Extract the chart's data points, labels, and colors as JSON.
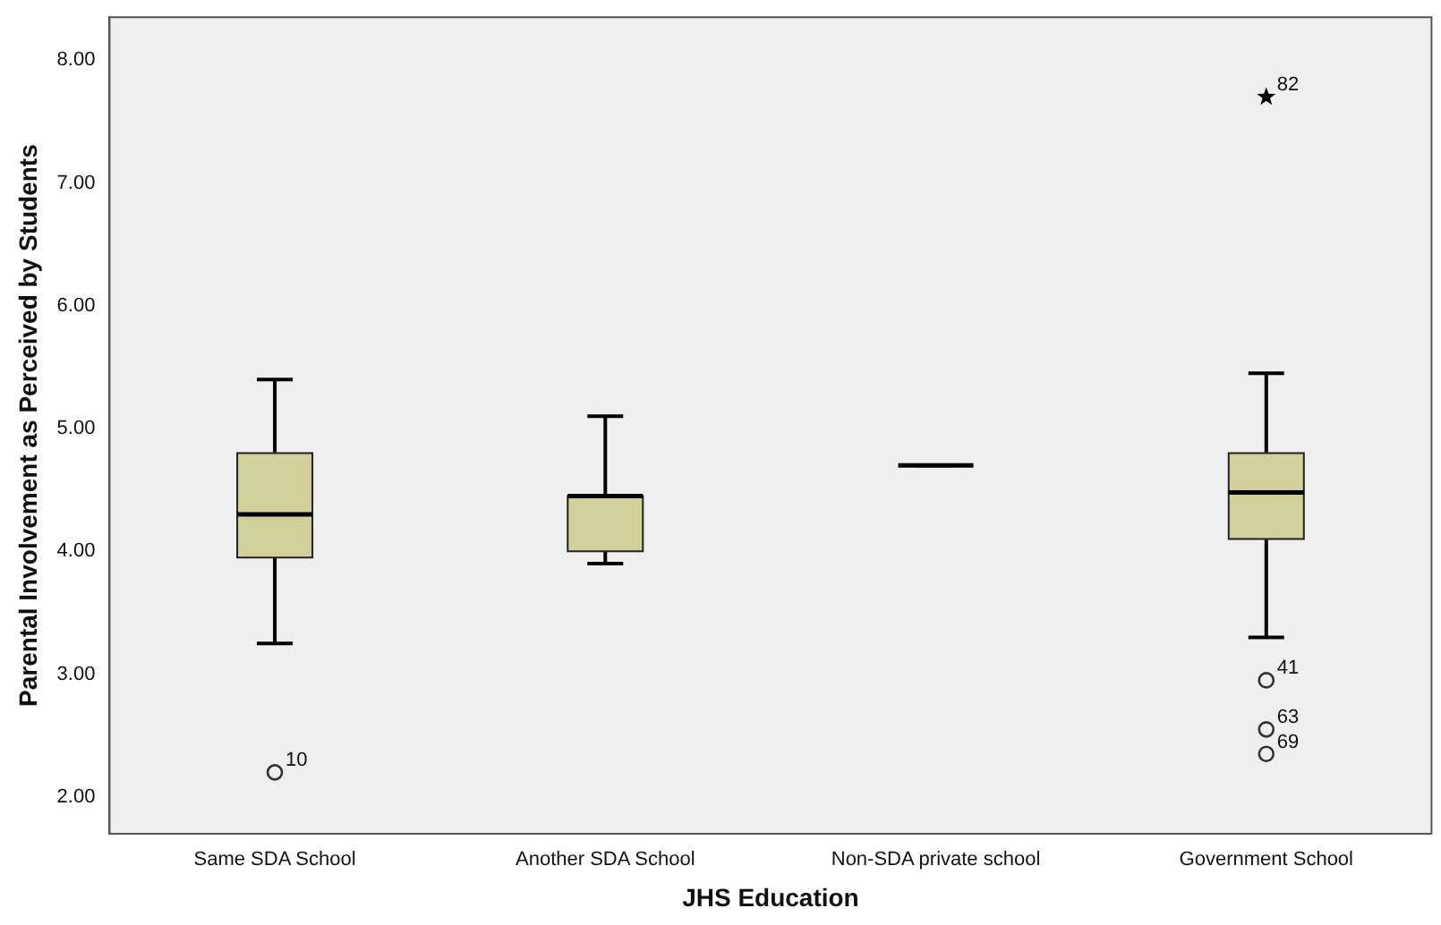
{
  "chart_data": {
    "type": "box",
    "xlabel": "JHS Education",
    "ylabel": "Parental Involvement as Perceived by Students",
    "categories": [
      "Same SDA School",
      "Another SDA School",
      "Non-SDA private school",
      "Government School"
    ],
    "color": "#d3cf9b",
    "boxes": [
      {
        "low": 3.25,
        "q1": 3.95,
        "median": 4.3,
        "q3": 4.8,
        "high": 5.4
      },
      {
        "low": 3.9,
        "q1": 4.0,
        "median": 4.45,
        "q3": 4.45,
        "high": 5.1
      },
      {
        "low": 4.7,
        "q1": 4.7,
        "median": 4.7,
        "q3": 4.7,
        "high": 4.7
      },
      {
        "low": 3.3,
        "q1": 4.1,
        "median": 4.48,
        "q3": 4.8,
        "high": 5.45
      }
    ],
    "series": [
      {
        "type": "scatter",
        "x": [
          "Same SDA School",
          "Government School",
          "Government School",
          "Government School"
        ],
        "values": [
          2.2,
          2.95,
          2.55,
          2.35
        ],
        "color": "#333333",
        "marker": "circle"
      },
      {
        "type": "scatter",
        "x": [
          "Government School"
        ],
        "values": [
          7.7
        ],
        "color": "#000000",
        "marker": "star"
      }
    ],
    "annotations": [
      {
        "text": "10",
        "x": "Same SDA School",
        "y": 2.2
      },
      {
        "text": "82",
        "x": "Government School",
        "y": 7.7
      },
      {
        "text": "41",
        "x": "Government School",
        "y": 2.95
      },
      {
        "text": "63",
        "x": "Government School",
        "y": 2.55
      },
      {
        "text": "69",
        "x": "Government School",
        "y": 2.35
      }
    ],
    "ylim": [
      1.7,
      8.35
    ],
    "yticks": [
      {
        "value": 2,
        "label": "2.00"
      },
      {
        "value": 3,
        "label": "3.00"
      },
      {
        "value": 4,
        "label": "4.00"
      },
      {
        "value": 5,
        "label": "5.00"
      },
      {
        "value": 6,
        "label": "6.00"
      },
      {
        "value": 7,
        "label": "7.00"
      },
      {
        "value": 8,
        "label": "8.00"
      }
    ],
    "grid": false,
    "legend": false
  }
}
